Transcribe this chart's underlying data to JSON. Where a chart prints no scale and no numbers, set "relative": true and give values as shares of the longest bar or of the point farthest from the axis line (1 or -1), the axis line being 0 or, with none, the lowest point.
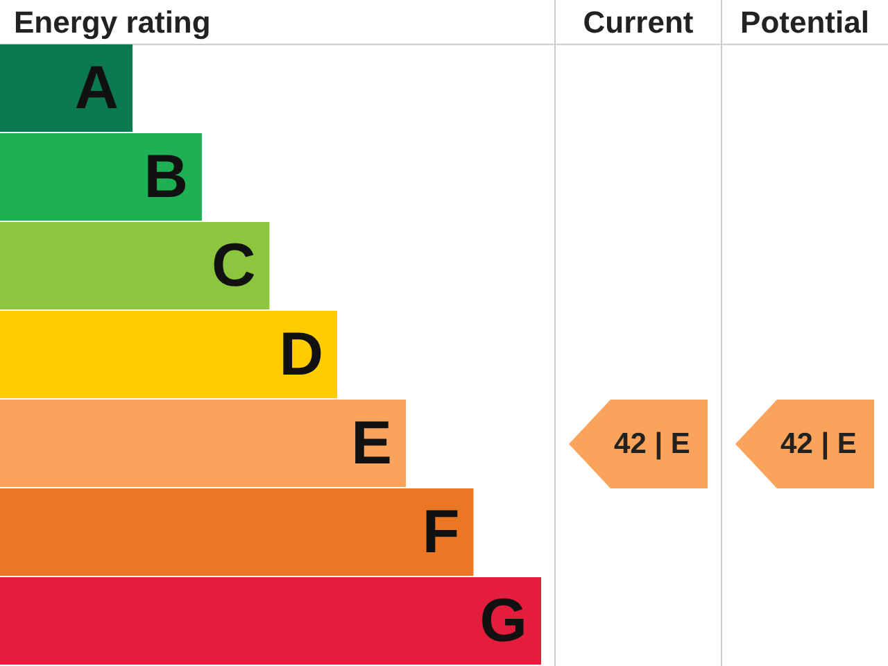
{
  "chart_data": {
    "type": "bar",
    "orientation": "horizontal",
    "relative": true,
    "title": "Energy rating",
    "categories": [
      "A",
      "B",
      "C",
      "D",
      "E",
      "F",
      "G"
    ],
    "values": [
      0.245,
      0.373,
      0.498,
      0.623,
      0.75,
      0.875,
      1.0
    ],
    "colors": [
      "#0c7a4f",
      "#1db153",
      "#8cc63f",
      "#ffcc00",
      "#f9a35b",
      "#eb7623",
      "#e31d3b"
    ],
    "annotations": [
      "Current",
      "Potential",
      "42 | E",
      "42 | E"
    ]
  }
}
